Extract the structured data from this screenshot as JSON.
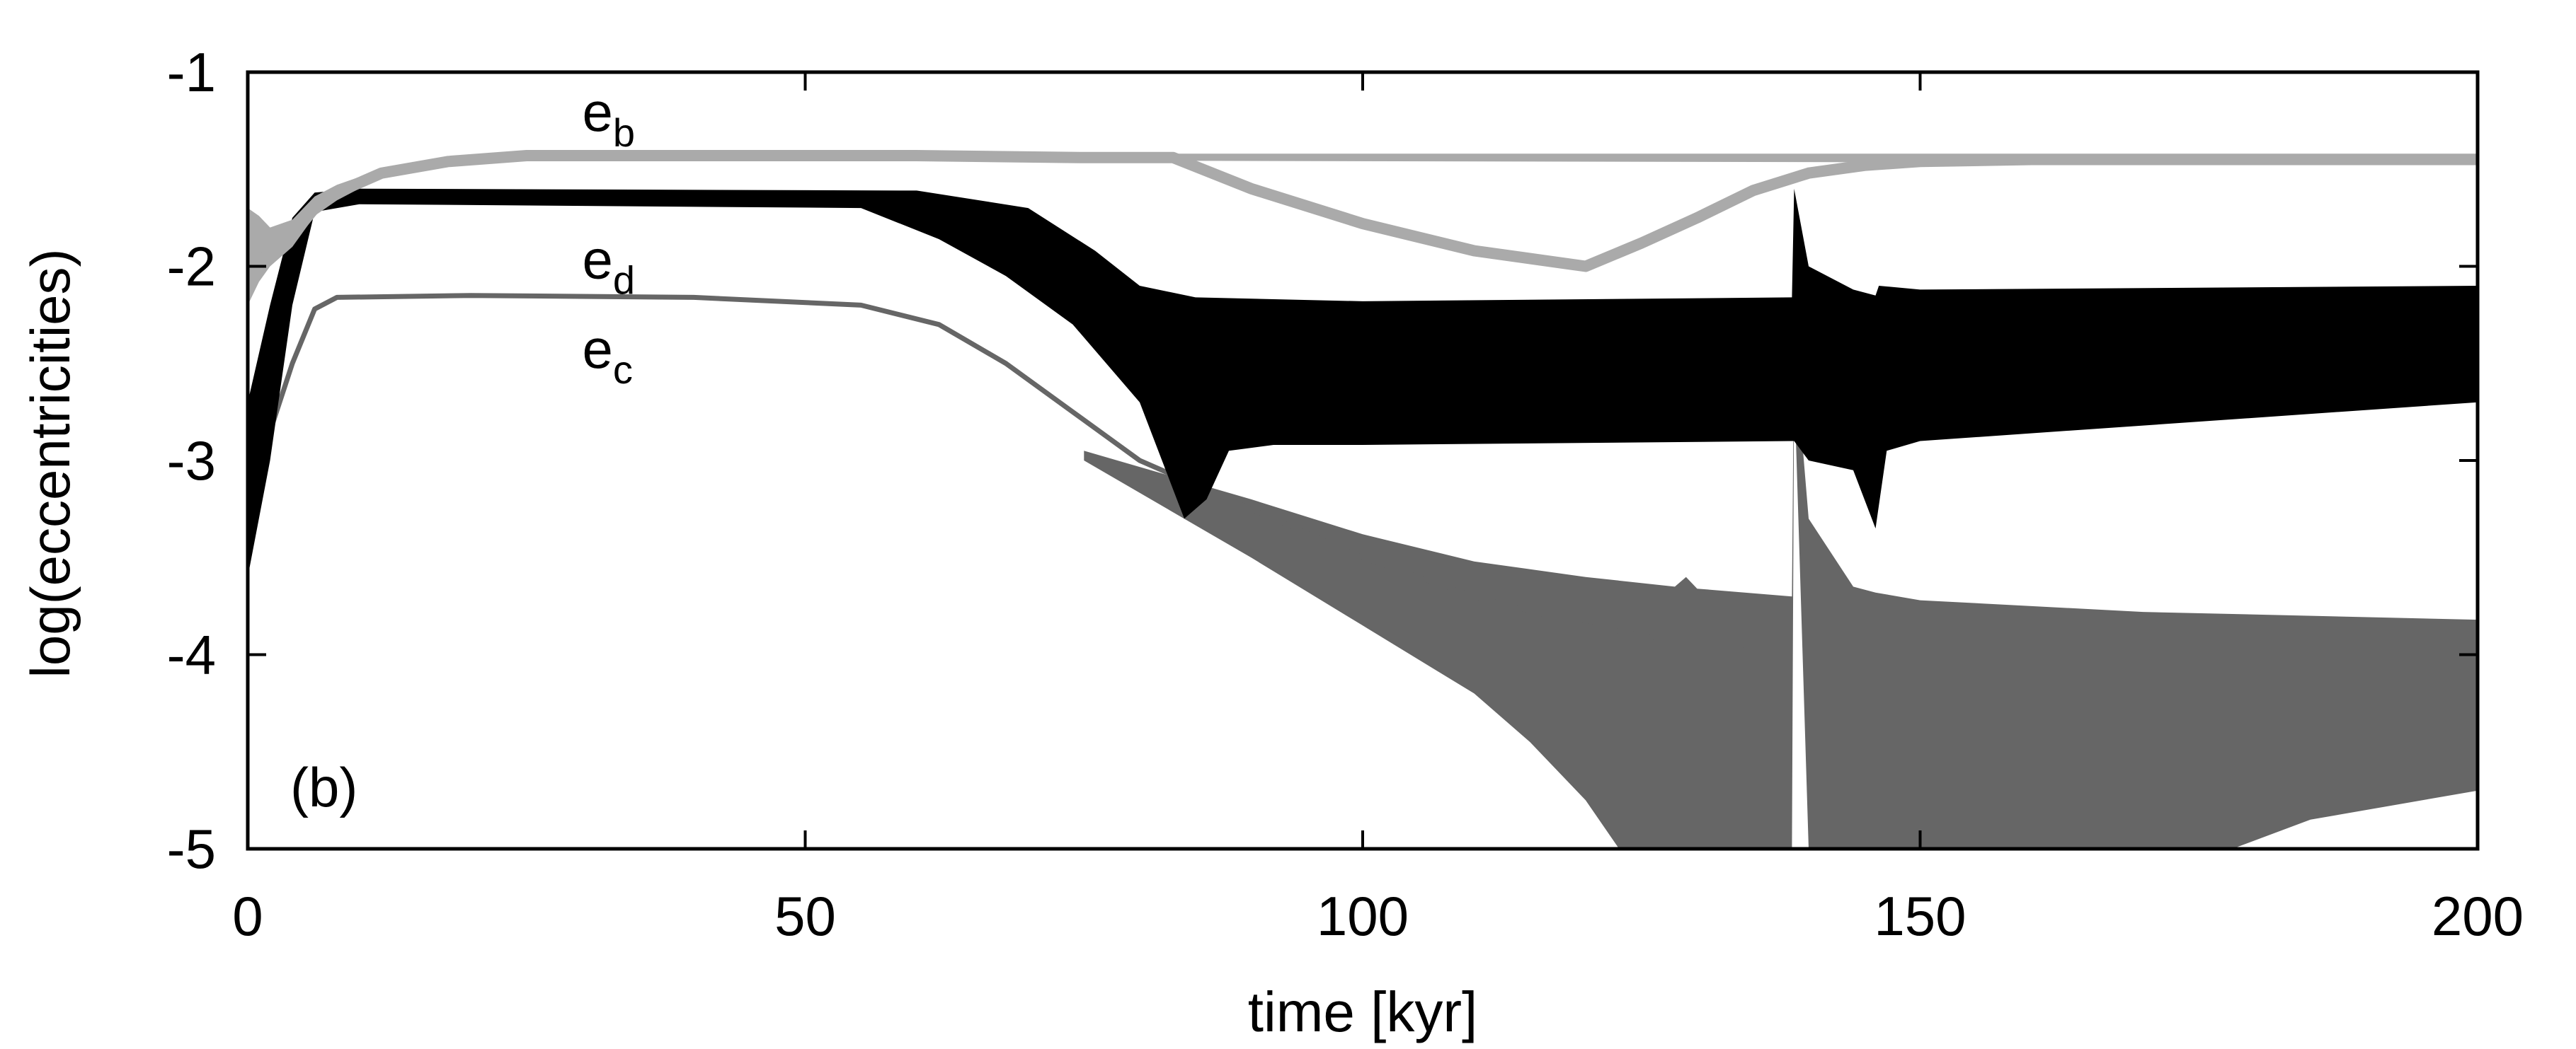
{
  "chart_data": {
    "type": "line",
    "xlabel": "time [kyr]",
    "ylabel": "log(eccentricities)",
    "panel_label": "(b)",
    "xlim": [
      0,
      200
    ],
    "ylim": [
      -5,
      -1
    ],
    "xticks": [
      0,
      50,
      100,
      150,
      200
    ],
    "yticks": [
      -1,
      -2,
      -3,
      -4,
      -5
    ],
    "xtick_labels": [
      "0",
      "50",
      "100",
      "150",
      "200"
    ],
    "ytick_labels": [
      "-1",
      "-2",
      "-3",
      "-4",
      "-5"
    ],
    "grid": false,
    "series": [
      {
        "name": "e_b",
        "label_base": "e",
        "label_sub": "b",
        "color": "#aaaaaa",
        "center": [
          [
            0,
            -1.86
          ],
          [
            2,
            -1.92
          ],
          [
            4,
            -1.84
          ],
          [
            6,
            -1.7
          ],
          [
            8,
            -1.62
          ],
          [
            12,
            -1.52
          ],
          [
            18,
            -1.46
          ],
          [
            25,
            -1.43
          ],
          [
            40,
            -1.43
          ],
          [
            60,
            -1.43
          ],
          [
            75,
            -1.44
          ],
          [
            83,
            -1.44
          ],
          [
            90,
            -1.6
          ],
          [
            100,
            -1.78
          ],
          [
            110,
            -1.92
          ],
          [
            120,
            -2.0
          ],
          [
            125,
            -1.88
          ],
          [
            130,
            -1.75
          ],
          [
            135,
            -1.61
          ],
          [
            140,
            -1.52
          ],
          [
            145,
            -1.48
          ],
          [
            150,
            -1.46
          ],
          [
            160,
            -1.45
          ],
          [
            200,
            -1.45
          ]
        ],
        "band_upper": [
          [
            0,
            -1.7
          ],
          [
            1,
            -1.74
          ],
          [
            2,
            -1.8
          ],
          [
            4,
            -1.76
          ],
          [
            6,
            -1.64
          ],
          [
            8,
            -1.58
          ],
          [
            12,
            -1.5
          ],
          [
            18,
            -1.45
          ],
          [
            25,
            -1.42
          ],
          [
            200,
            -1.42
          ]
        ],
        "band_lower": [
          [
            0,
            -2.2
          ],
          [
            1,
            -2.08
          ],
          [
            2,
            -2.0
          ],
          [
            4,
            -1.9
          ],
          [
            6,
            -1.74
          ],
          [
            8,
            -1.66
          ],
          [
            12,
            -1.54
          ],
          [
            18,
            -1.48
          ],
          [
            25,
            -1.45
          ],
          [
            200,
            -1.47
          ]
        ]
      },
      {
        "name": "e_d",
        "label_base": "e",
        "label_sub": "d",
        "color": "#000000",
        "band_upper": [
          [
            0,
            -2.7
          ],
          [
            2,
            -2.2
          ],
          [
            4,
            -1.75
          ],
          [
            6,
            -1.62
          ],
          [
            10,
            -1.6
          ],
          [
            60,
            -1.61
          ],
          [
            70,
            -1.7
          ],
          [
            76,
            -1.92
          ],
          [
            80,
            -2.1
          ],
          [
            85,
            -2.16
          ],
          [
            100,
            -2.18
          ],
          [
            138.5,
            -2.16
          ],
          [
            138.7,
            -1.6
          ],
          [
            140,
            -2.0
          ],
          [
            144,
            -2.12
          ],
          [
            146,
            -2.15
          ],
          [
            146.3,
            -2.1
          ],
          [
            150,
            -2.12
          ],
          [
            200,
            -2.1
          ]
        ],
        "band_lower": [
          [
            0,
            -3.6
          ],
          [
            2,
            -3.0
          ],
          [
            4,
            -2.2
          ],
          [
            6,
            -1.72
          ],
          [
            10,
            -1.68
          ],
          [
            55,
            -1.7
          ],
          [
            62,
            -1.86
          ],
          [
            68,
            -2.05
          ],
          [
            74,
            -2.3
          ],
          [
            80,
            -2.7
          ],
          [
            84,
            -3.3
          ],
          [
            86,
            -3.2
          ],
          [
            88,
            -2.95
          ],
          [
            92,
            -2.92
          ],
          [
            100,
            -2.92
          ],
          [
            138.5,
            -2.9
          ],
          [
            138.7,
            -2.9
          ],
          [
            140,
            -3.0
          ],
          [
            144,
            -3.05
          ],
          [
            146,
            -3.35
          ],
          [
            147,
            -2.95
          ],
          [
            150,
            -2.9
          ],
          [
            200,
            -2.7
          ]
        ]
      },
      {
        "name": "e_c",
        "label_base": "e",
        "label_sub": "c",
        "color": "#666666",
        "center": [
          [
            0,
            -3.05
          ],
          [
            2,
            -2.85
          ],
          [
            4,
            -2.5
          ],
          [
            6,
            -2.22
          ],
          [
            8,
            -2.16
          ],
          [
            20,
            -2.15
          ],
          [
            40,
            -2.16
          ],
          [
            55,
            -2.2
          ],
          [
            62,
            -2.3
          ],
          [
            68,
            -2.5
          ],
          [
            74,
            -2.75
          ],
          [
            80,
            -3.0
          ],
          [
            90,
            -3.25
          ],
          [
            100,
            -3.5
          ],
          [
            110,
            -3.7
          ],
          [
            120,
            -3.85
          ],
          [
            130,
            -3.95
          ],
          [
            138,
            -4.0
          ]
        ],
        "band_upper": [
          [
            75,
            -2.95
          ],
          [
            90,
            -3.2
          ],
          [
            100,
            -3.38
          ],
          [
            110,
            -3.52
          ],
          [
            120,
            -3.6
          ],
          [
            128,
            -3.65
          ],
          [
            129,
            -3.6
          ],
          [
            130,
            -3.66
          ],
          [
            138.5,
            -3.7
          ],
          [
            138.7,
            -2.4
          ],
          [
            140,
            -3.3
          ],
          [
            144,
            -3.65
          ],
          [
            146,
            -3.68
          ],
          [
            150,
            -3.72
          ],
          [
            170,
            -3.78
          ],
          [
            200,
            -3.82
          ]
        ],
        "band_lower": [
          [
            75,
            -3.0
          ],
          [
            90,
            -3.5
          ],
          [
            100,
            -3.85
          ],
          [
            110,
            -4.2
          ],
          [
            115,
            -4.45
          ],
          [
            120,
            -4.75
          ],
          [
            123,
            -5.0
          ],
          [
            138.5,
            -5.0
          ],
          [
            138.7,
            -2.6
          ],
          [
            140,
            -5.0
          ],
          [
            178,
            -5.0
          ],
          [
            185,
            -4.85
          ],
          [
            192,
            -4.78
          ],
          [
            200,
            -4.7
          ]
        ]
      }
    ]
  }
}
